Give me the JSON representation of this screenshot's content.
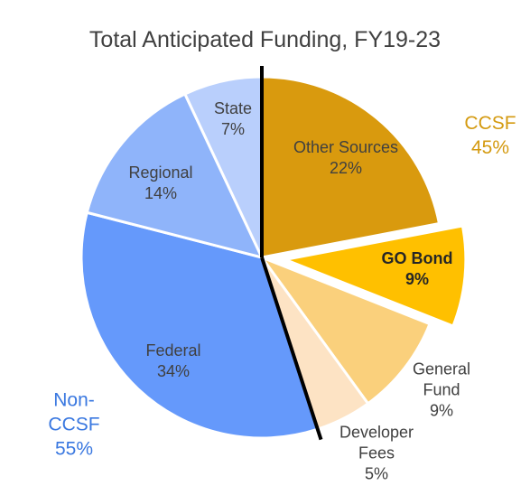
{
  "chart_data": {
    "type": "pie",
    "title": "Total Anticipated Funding, FY19-23",
    "categories": [
      "Other Sources",
      "GO Bond",
      "General Fund",
      "Developer Fees",
      "Federal",
      "Regional",
      "State"
    ],
    "values": [
      22,
      9,
      9,
      5,
      34,
      14,
      7
    ],
    "value_labels": [
      "22%",
      "9%",
      "9%",
      "5%",
      "34%",
      "14%",
      "7%"
    ],
    "colors": [
      "#d99a0e",
      "#ffc000",
      "#fad07c",
      "#fde3c4",
      "#6599fb",
      "#8fb4fa",
      "#b9cffc"
    ],
    "groups": {
      "names": [
        "CCSF",
        "Non-CCSF"
      ],
      "values": [
        45,
        55
      ],
      "value_labels": [
        "45%",
        "55%"
      ],
      "colors": [
        "#d49a10",
        "#3a78e0"
      ]
    }
  }
}
